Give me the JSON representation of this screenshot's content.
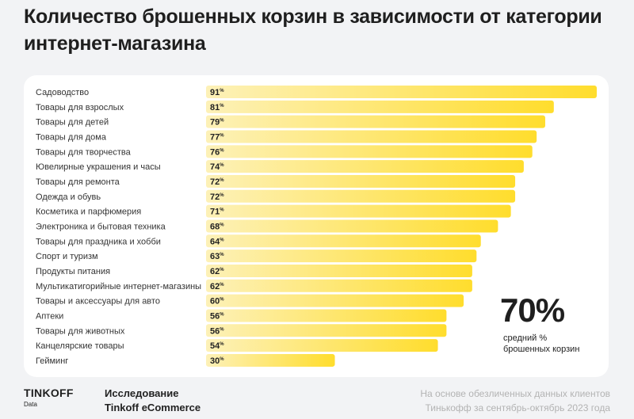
{
  "title": "Количество брошенных корзин в зависимости от категории интернет-магазина",
  "chart_data": {
    "type": "bar",
    "orientation": "horizontal",
    "categories": [
      "Садоводство",
      "Товары для взрослых",
      "Товары для детей",
      "Товары для дома",
      "Товары для творчества",
      "Ювелирные украшения и часы",
      "Товары для ремонта",
      "Одежда и обувь",
      "Косметика и парфюмерия",
      "Электроника и бытовая техника",
      "Товары для праздника и хобби",
      "Спорт и туризм",
      "Продукты питания",
      "Мультикатигорийные интернет-магазины",
      "Товары и аксессуары для авто",
      "Аптеки",
      "Товары для животных",
      "Канцелярские товары",
      "Гейминг"
    ],
    "values": [
      91,
      81,
      79,
      77,
      76,
      74,
      72,
      72,
      71,
      68,
      64,
      63,
      62,
      62,
      60,
      56,
      56,
      54,
      30
    ],
    "unit": "%",
    "xlim": [
      0,
      91
    ],
    "colors": {
      "bar_start": "#fdf1b8",
      "bar_end": "#ffdd2d"
    }
  },
  "summary": {
    "value": "70%",
    "caption_line1": "средний %",
    "caption_line2": "брошенных корзин"
  },
  "footer": {
    "logo": "TINKOFF",
    "logo_sub": "Data",
    "study_line1": "Исследование",
    "study_line2": "Tinkoff eCommerce",
    "source_line1": "На основе обезличенных данных клиентов",
    "source_line2": "Тинькофф за сентябрь-октябрь 2023 года"
  }
}
